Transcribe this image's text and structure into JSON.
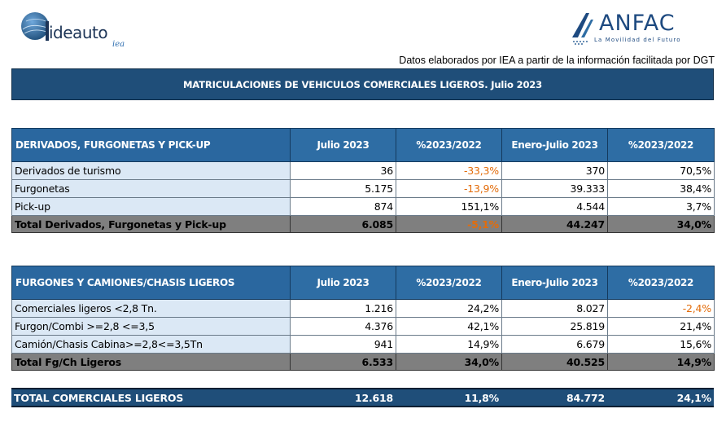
{
  "logos": {
    "ideauto": {
      "wordmark": "ideauto",
      "sub": "iea"
    },
    "anfac": {
      "wordmark": "ANFAC",
      "tagline": "La Movilidad del Futuro"
    }
  },
  "source_note": "Datos elaborados por IEA a partir de la información facilitada por DGT",
  "title": "MATRICULACIONES DE VEHICULOS COMERCIALES LIGEROS. Julio 2023",
  "columns": [
    "Julio 2023",
    "%2023/2022",
    "Enero-Julio 2023",
    "%2023/2022"
  ],
  "section1": {
    "header": "DERIVADOS, FURGONETAS Y PICK-UP",
    "rows": [
      {
        "label": "Derivados de turismo",
        "v1": "36",
        "v2": "-33,3%",
        "v3": "370",
        "v4": "70,5%"
      },
      {
        "label": "Furgonetas",
        "v1": "5.175",
        "v2": "-13,9%",
        "v3": "39.333",
        "v4": "38,4%"
      },
      {
        "label": "Pick-up",
        "v1": "874",
        "v2": "151,1%",
        "v3": "4.544",
        "v4": "3,7%"
      }
    ],
    "total": {
      "label": "Total Derivados, Furgonetas y Pick-up",
      "v1": "6.085",
      "v2": "-5,1%",
      "v3": "44.247",
      "v4": "34,0%"
    }
  },
  "section2": {
    "header": "FURGONES Y CAMIONES/CHASIS LIGEROS",
    "rows": [
      {
        "label": "Comerciales ligeros <2,8 Tn.",
        "v1": "1.216",
        "v2": "24,2%",
        "v3": "8.027",
        "v4": "-2,4%"
      },
      {
        "label": "Furgon/Combi >=2,8 <=3,5",
        "v1": "4.376",
        "v2": "42,1%",
        "v3": "25.819",
        "v4": "21,4%"
      },
      {
        "label": "Camión/Chasis Cabina>=2,8<=3,5Tn",
        "v1": "941",
        "v2": "14,9%",
        "v3": "6.679",
        "v4": "15,6%"
      }
    ],
    "total": {
      "label": "Total Fg/Ch Ligeros",
      "v1": "6.533",
      "v2": "34,0%",
      "v3": "40.525",
      "v4": "14,9%"
    }
  },
  "grand_total": {
    "label": "TOTAL COMERCIALES LIGEROS",
    "v1": "12.618",
    "v2": "11,8%",
    "v3": "84.772",
    "v4": "24,1%"
  },
  "colors": {
    "header_blue": "#2e6da4",
    "title_blue": "#1f4e79",
    "label_bg": "#dbe8f5",
    "total_gray": "#7f7f7f",
    "negative": "#e36c0a"
  }
}
